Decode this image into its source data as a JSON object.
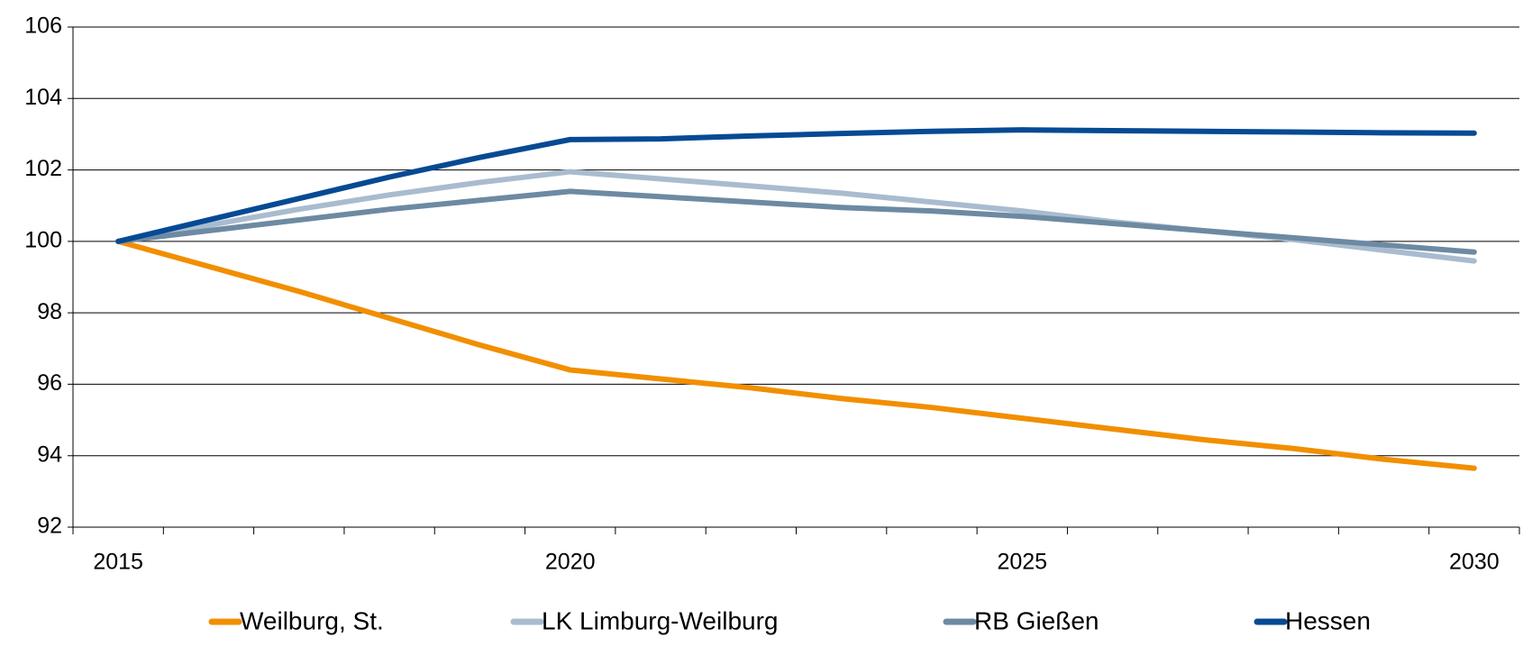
{
  "chart_data": {
    "type": "line",
    "categories": [
      "2015",
      null,
      null,
      null,
      null,
      "2020",
      null,
      null,
      null,
      null,
      "2025",
      null,
      null,
      null,
      null,
      "2030"
    ],
    "series": [
      {
        "name": "Weilburg, St.",
        "color": "#f18f00",
        "values": [
          100,
          99.3,
          98.6,
          97.85,
          97.1,
          96.4,
          96.15,
          95.9,
          95.6,
          95.35,
          95.05,
          94.75,
          94.45,
          94.2,
          93.9,
          93.65
        ]
      },
      {
        "name": "LK Limburg-Weilburg",
        "color": "#a9bccf",
        "values": [
          100,
          100.45,
          100.9,
          101.3,
          101.65,
          101.95,
          101.75,
          101.55,
          101.35,
          101.1,
          100.85,
          100.55,
          100.3,
          100.05,
          99.75,
          99.45
        ]
      },
      {
        "name": "RB Gießen",
        "color": "#6d8aa3",
        "values": [
          100,
          100.3,
          100.6,
          100.9,
          101.15,
          101.4,
          101.25,
          101.1,
          100.95,
          100.85,
          100.7,
          100.5,
          100.3,
          100.1,
          99.9,
          99.7
        ]
      },
      {
        "name": "Hessen",
        "color": "#064a94",
        "values": [
          100,
          100.6,
          101.2,
          101.8,
          102.35,
          102.85,
          102.87,
          102.95,
          103.02,
          103.08,
          103.12,
          103.1,
          103.08,
          103.06,
          103.04,
          103.03
        ]
      }
    ],
    "ylim": [
      92,
      106
    ],
    "yticks": [
      92,
      94,
      96,
      98,
      100,
      102,
      104,
      106
    ],
    "grid": true
  }
}
